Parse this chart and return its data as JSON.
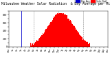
{
  "title": "Milwaukee Weather Solar Radiation",
  "subtitle": "& Day Average per Minute (Today)",
  "bg_color": "#ffffff",
  "plot_bg": "#ffffff",
  "bar_color": "#ff0000",
  "avg_line_color": "#0000cc",
  "legend_red_label": "Solar Rad",
  "legend_blue_label": "Day Avg",
  "x_min": 0,
  "x_max": 1440,
  "y_min": 0,
  "y_max": 900,
  "current_minute": 185,
  "num_bars": 1440,
  "peak_minute": 760,
  "peak_value": 840,
  "grid_xticks": [
    360,
    720,
    1080
  ],
  "grid_color": "#888888",
  "title_fontsize": 3.5,
  "tick_fontsize": 2.5,
  "axis_color": "#000000",
  "figure_width": 1.6,
  "figure_height": 0.87,
  "dpi": 100
}
